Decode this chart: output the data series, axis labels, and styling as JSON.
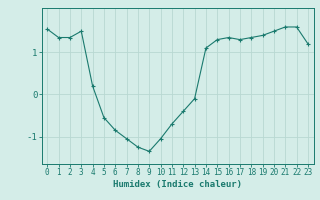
{
  "x": [
    0,
    1,
    2,
    3,
    4,
    5,
    6,
    7,
    8,
    9,
    10,
    11,
    12,
    13,
    14,
    15,
    16,
    17,
    18,
    19,
    20,
    21,
    22,
    23
  ],
  "y": [
    1.55,
    1.35,
    1.35,
    1.5,
    0.2,
    -0.55,
    -0.85,
    -1.05,
    -1.25,
    -1.35,
    -1.05,
    -0.7,
    -0.4,
    -0.1,
    1.1,
    1.3,
    1.35,
    1.3,
    1.35,
    1.4,
    1.5,
    1.6,
    1.6,
    1.2
  ],
  "line_color": "#1a7a6e",
  "marker_color": "#1a7a6e",
  "bg_color": "#d4ede8",
  "grid_color": "#b8d8d2",
  "axis_color": "#1a7a6e",
  "xlabel": "Humidex (Indice chaleur)",
  "yticks": [
    -1,
    0,
    1
  ],
  "ylim": [
    -1.65,
    2.05
  ],
  "xlim": [
    -0.5,
    23.5
  ],
  "tick_fontsize": 5.5,
  "label_fontsize": 6.5
}
